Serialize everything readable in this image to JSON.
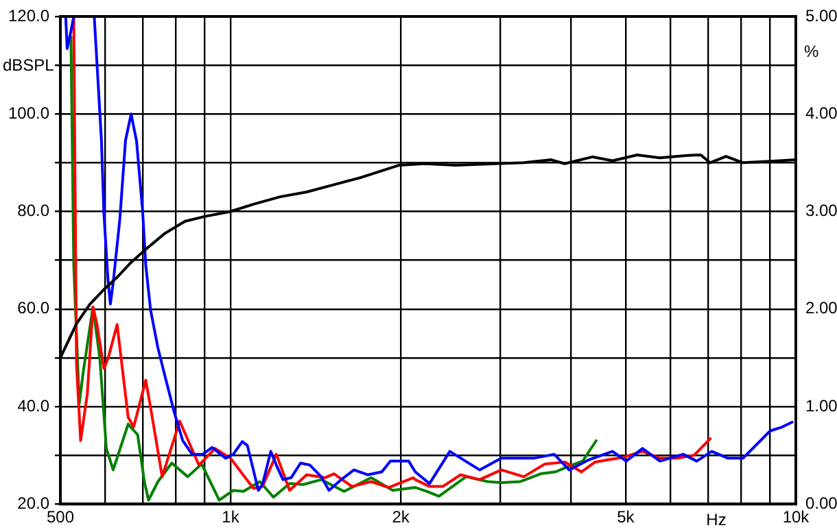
{
  "chart_data": {
    "type": "line",
    "xlabel": "Hz",
    "ylabel": "dBSPL",
    "y2label": "%",
    "log": "x",
    "xlim": [
      500,
      10000
    ],
    "xticks": [
      500,
      {
        "value": 600,
        "label": null
      },
      {
        "value": 700,
        "label": null
      },
      {
        "value": 800,
        "label": null
      },
      {
        "value": 900,
        "label": null
      },
      {
        "value": 1000,
        "label": "1k"
      },
      {
        "value": 2000,
        "label": "2k"
      },
      {
        "value": 3000,
        "label": null
      },
      {
        "value": 4000,
        "label": null
      },
      {
        "value": 5000,
        "label": "5k"
      },
      {
        "value": 6000,
        "label": null
      },
      {
        "value": 7000,
        "label": null
      },
      {
        "value": 8000,
        "label": null
      },
      {
        "value": 9000,
        "label": null
      },
      {
        "value": 10000,
        "label": "10k"
      }
    ],
    "ylim": [
      20,
      120
    ],
    "yticks": [
      {
        "value": 20,
        "label": "20.0"
      },
      {
        "value": 30,
        "label": null
      },
      {
        "value": 40,
        "label": "40.0"
      },
      {
        "value": 50,
        "label": null
      },
      {
        "value": 60,
        "label": "60.0"
      },
      {
        "value": 70,
        "label": null
      },
      {
        "value": 80,
        "label": "80.0"
      },
      {
        "value": 90,
        "label": null
      },
      {
        "value": 100,
        "label": "100.0"
      },
      {
        "value": 110,
        "label": null
      },
      {
        "value": 120,
        "label": "120.0"
      }
    ],
    "y2lim": [
      0,
      5
    ],
    "y2ticks": [
      {
        "value": 0,
        "label": "0.00"
      },
      {
        "value": 1,
        "label": "1.00"
      },
      {
        "value": 2,
        "label": "2.00"
      },
      {
        "value": 3,
        "label": "3.00"
      },
      {
        "value": 4,
        "label": "4.00"
      },
      {
        "value": 5,
        "label": "5.00"
      }
    ],
    "grid": true,
    "legend": false,
    "marker": "none",
    "line_style": "solid",
    "series": [
      {
        "color": "#000000",
        "x": [
          500,
          534,
          564,
          597,
          630,
          666,
          704,
          765,
          831,
          902,
          1000,
          1098,
          1223,
          1364,
          1524,
          1704,
          1988,
          2200,
          2500,
          2948,
          3302,
          3694,
          3900,
          4364,
          4740,
          5240,
          5748,
          6430,
          6790,
          7052,
          7522,
          8063,
          9007,
          10000
        ],
        "values": [
          50,
          57,
          61,
          64,
          66.5,
          69.5,
          72,
          75.5,
          78,
          79,
          80,
          81.5,
          83,
          84,
          85.5,
          87,
          89.5,
          89.8,
          89.5,
          89.8,
          90,
          90.6,
          89.8,
          91.2,
          90.4,
          91.6,
          91,
          91.5,
          91.6,
          90,
          91.3,
          90,
          90.3,
          90.6
        ]
      },
      {
        "color": "#0000ff",
        "axis": "y2",
        "x": [
          511,
          514,
          522,
          528,
          545,
          574,
          591,
          597,
          607,
          613,
          620,
          637,
          652,
          667,
          682,
          699,
          708,
          722,
          744,
          765,
          796,
          823,
          855,
          893,
          928,
          980,
          1011,
          1049,
          1071,
          1120,
          1139,
          1178,
          1205,
          1238,
          1280,
          1330,
          1381,
          1447,
          1493,
          1569,
          1653,
          1750,
          1852,
          1918,
          2066,
          2122,
          2249,
          2443,
          2758,
          3014,
          3440,
          3738,
          3972,
          4290,
          4740,
          5010,
          5355,
          5748,
          6320,
          6680,
          7100,
          7585,
          8063,
          9007,
          9460,
          9850
        ],
        "values": [
          5,
          4.67,
          4.85,
          5,
          null,
          5,
          3.73,
          2.98,
          2.3,
          2.05,
          2.27,
          2.92,
          3.73,
          4,
          3.72,
          3,
          2.45,
          1.99,
          1.6,
          1.32,
          0.93,
          0.65,
          0.51,
          0.51,
          0.58,
          0.47,
          0.51,
          0.64,
          0.6,
          0.14,
          0.2,
          0.54,
          0.4,
          0.25,
          0.27,
          0.42,
          0.4,
          0.28,
          0.14,
          0.25,
          0.35,
          0.3,
          0.33,
          0.44,
          0.44,
          0.33,
          0.21,
          0.54,
          0.35,
          0.47,
          0.47,
          0.51,
          0.35,
          0.45,
          0.54,
          0.44,
          0.57,
          0.44,
          0.51,
          0.44,
          0.54,
          0.47,
          0.47,
          0.75,
          0.79,
          0.84
        ]
      },
      {
        "color": "#ff0000",
        "axis": "y2",
        "x": [
          528,
          534,
          543,
          558,
          571,
          580,
          597,
          607,
          630,
          659,
          674,
          708,
          722,
          757,
          813,
          879,
          939,
          1000,
          1098,
          1139,
          1205,
          1272,
          1364,
          1469,
          1524,
          1640,
          1773,
          1905,
          2104,
          2122,
          2249,
          2374,
          2553,
          2758,
          3014,
          3302,
          3596,
          3906,
          4174,
          4412,
          4611,
          4954,
          5355,
          5748,
          6180,
          6605,
          7058
        ],
        "values": [
          5,
          1.43,
          0.65,
          1.13,
          2.02,
          1.85,
          1.39,
          1.49,
          1.84,
          0.89,
          0.79,
          1.27,
          0.99,
          0.28,
          0.85,
          0.4,
          0.57,
          0.47,
          0.16,
          0.18,
          0.51,
          0.14,
          0.3,
          0.27,
          0.31,
          0.18,
          0.23,
          0.17,
          0.27,
          0.25,
          0.18,
          0.18,
          0.3,
          0.25,
          0.35,
          0.28,
          0.41,
          0.43,
          0.33,
          0.43,
          0.45,
          0.48,
          0.54,
          0.47,
          0.47,
          0.5,
          0.67
        ]
      },
      {
        "color": "#008000",
        "axis": "y2",
        "x": [
          522,
          528,
          540,
          549,
          571,
          587,
          603,
          620,
          659,
          685,
          704,
          716,
          744,
          787,
          840,
          889,
          955,
          1011,
          1054,
          1127,
          1191,
          1272,
          1345,
          1447,
          1588,
          1773,
          1936,
          2122,
          2223,
          2337,
          2610,
          2851,
          3014,
          3255,
          3536,
          3758,
          4015,
          4197,
          4434
        ],
        "values": [
          4.79,
          2.45,
          1.03,
          1.36,
          2.02,
          1.5,
          0.57,
          0.35,
          0.82,
          0.71,
          0.23,
          0.04,
          0.23,
          0.42,
          0.28,
          0.41,
          0.04,
          0.14,
          0.13,
          0.23,
          0.07,
          0.21,
          0.2,
          0.25,
          0.13,
          0.27,
          0.14,
          0.17,
          0.13,
          0.08,
          0.28,
          0.23,
          0.22,
          0.23,
          0.31,
          0.33,
          0.4,
          0.44,
          0.65
        ]
      }
    ]
  }
}
